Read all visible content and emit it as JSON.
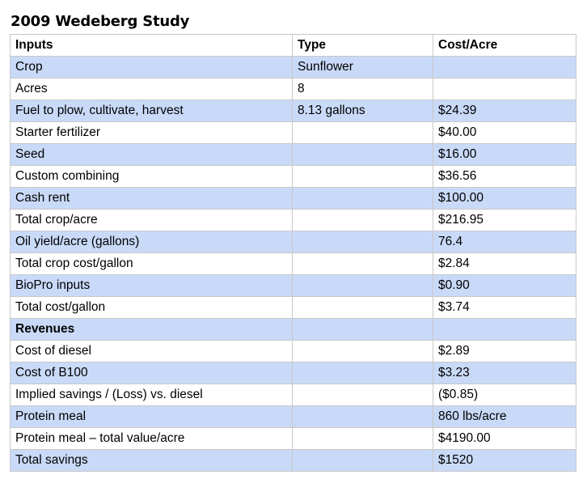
{
  "title": "2009 Wedeberg Study",
  "headers": [
    "Inputs",
    "Type",
    "Cost/Acre"
  ],
  "rows": [
    {
      "label": "Crop",
      "type": "Sunflower",
      "cost": ""
    },
    {
      "label": "Acres",
      "type": "8",
      "cost": ""
    },
    {
      "label": "Fuel to plow, cultivate, harvest",
      "type": "8.13 gallons",
      "cost": "$24.39"
    },
    {
      "label": "Starter fertilizer",
      "type": "",
      "cost": "$40.00"
    },
    {
      "label": "Seed",
      "type": "",
      "cost": "$16.00"
    },
    {
      "label": "Custom combining",
      "type": "",
      "cost": "$36.56"
    },
    {
      "label": "Cash rent",
      "type": "",
      "cost": "$100.00"
    },
    {
      "label": "Total crop/acre",
      "type": "",
      "cost": "$216.95"
    },
    {
      "label": "Oil yield/acre (gallons)",
      "type": "",
      "cost": "76.4"
    },
    {
      "label": "Total crop cost/gallon",
      "type": "",
      "cost": "$2.84"
    },
    {
      "label": "BioPro inputs",
      "type": "",
      "cost": "$0.90"
    },
    {
      "label": "Total cost/gallon",
      "type": "",
      "cost": "$3.74"
    },
    {
      "label": "Revenues",
      "type": "",
      "cost": ""
    },
    {
      "label": "Cost of diesel",
      "type": "",
      "cost": "$2.89"
    },
    {
      "label": "Cost of B100",
      "type": "",
      "cost": "$3.23"
    },
    {
      "label": "Implied savings / (Loss) vs. diesel",
      "type": "",
      "cost": "($0.85)"
    },
    {
      "label": "Protein meal",
      "type": "",
      "cost": "860 lbs/acre"
    },
    {
      "label": "Protein meal – total value/acre",
      "type": "",
      "cost": "$4190.00"
    },
    {
      "label": "Total savings",
      "type": "",
      "cost": "$1520"
    }
  ]
}
